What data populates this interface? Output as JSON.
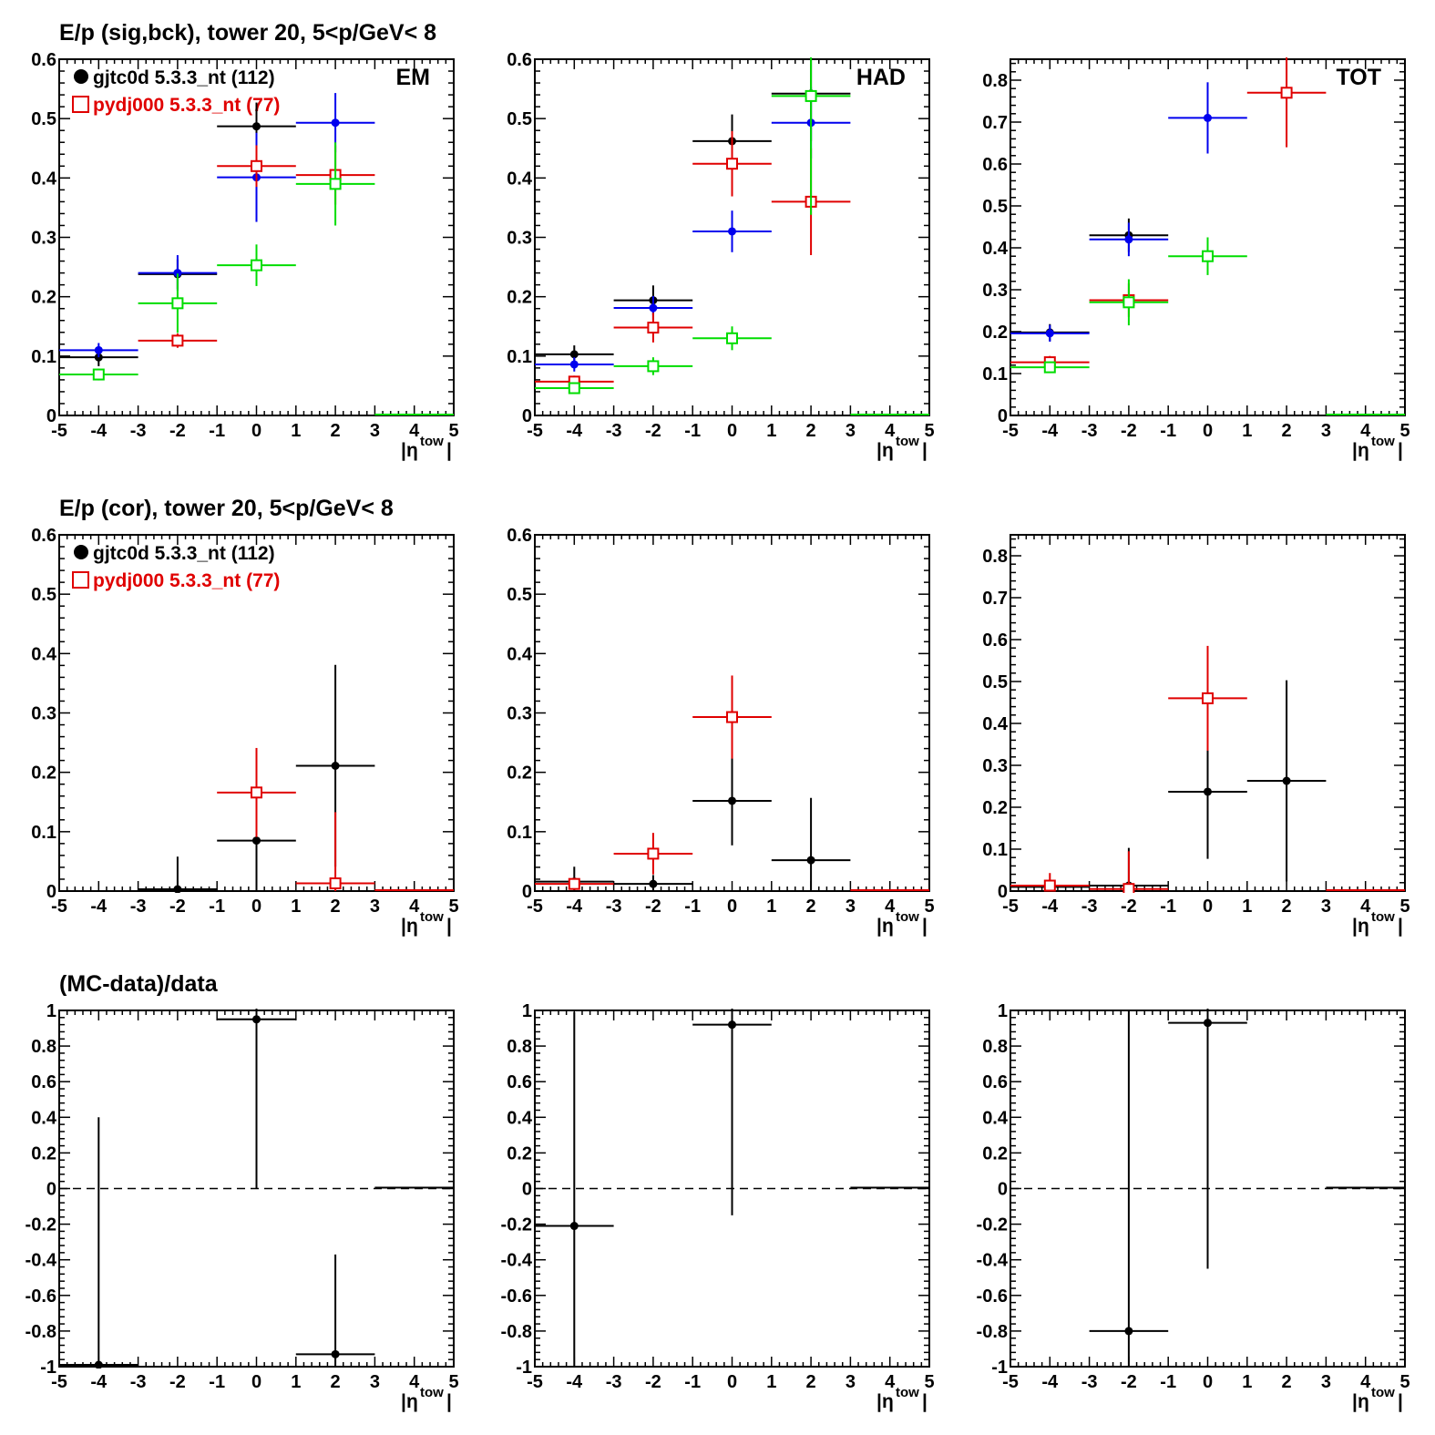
{
  "rows": [
    {
      "title": "E/p (sig,bck), tower 20,  5<p/GeV< 8",
      "legend": [
        {
          "label": "gjtc0d 5.3.3_nt (112)",
          "color": "#000000",
          "marker": "filled-circle"
        },
        {
          "label": "pydj000 5.3.3_nt (77)",
          "color": "#e00000",
          "marker": "open-square"
        }
      ]
    },
    {
      "title": "E/p (cor), tower 20,  5<p/GeV< 8",
      "legend": [
        {
          "label": "gjtc0d 5.3.3_nt (112)",
          "color": "#000000",
          "marker": "filled-circle"
        },
        {
          "label": "pydj000 5.3.3_nt (77)",
          "color": "#e00000",
          "marker": "open-square"
        }
      ]
    },
    {
      "title": "(MC-data)/data",
      "legend": []
    }
  ],
  "chart_data": [
    {
      "type": "scatter",
      "row": 0,
      "col": 0,
      "tag": "EM",
      "xlabel": "|η^tow|",
      "xlim": [
        -5,
        5
      ],
      "ylim": [
        0,
        0.6
      ],
      "xticks": [
        -5,
        -4,
        -3,
        -2,
        -1,
        0,
        1,
        2,
        3,
        4,
        5
      ],
      "yticks": [
        0,
        0.1,
        0.2,
        0.3,
        0.4,
        0.5,
        0.6
      ],
      "ytick_labels": [
        "0",
        "0.1",
        "0.2",
        "0.3",
        "0.4",
        "0.5",
        "0.6"
      ],
      "series": [
        {
          "color": "#000000",
          "marker": "dot",
          "points": [
            [
              -4,
              0.098,
              0.015
            ],
            [
              -2,
              0.238,
              0.025
            ],
            [
              0,
              0.487,
              0.04
            ]
          ],
          "zero_from": 3
        },
        {
          "color": "#0000ee",
          "marker": "dot",
          "points": [
            [
              -4,
              0.11,
              0.012
            ],
            [
              -2,
              0.24,
              0.03
            ],
            [
              0,
              0.401,
              0.075
            ],
            [
              2,
              0.493,
              0.05
            ]
          ]
        },
        {
          "color": "#e00000",
          "marker": "square",
          "points": [
            [
              -2,
              0.126,
              0.012
            ],
            [
              0,
              0.42,
              0.035
            ],
            [
              2,
              0.405,
              0.05
            ]
          ]
        },
        {
          "color": "#00dd00",
          "marker": "square",
          "points": [
            [
              -4,
              0.069,
              0.01
            ],
            [
              -2,
              0.189,
              0.05
            ],
            [
              0,
              0.253,
              0.035
            ],
            [
              2,
              0.39,
              0.07
            ]
          ],
          "zero_from": 3
        }
      ]
    },
    {
      "type": "scatter",
      "row": 0,
      "col": 1,
      "tag": "HAD",
      "xlabel": "|η^tow|",
      "xlim": [
        -5,
        5
      ],
      "ylim": [
        0,
        0.6
      ],
      "xticks": [
        -5,
        -4,
        -3,
        -2,
        -1,
        0,
        1,
        2,
        3,
        4,
        5
      ],
      "yticks": [
        0,
        0.1,
        0.2,
        0.3,
        0.4,
        0.5,
        0.6
      ],
      "ytick_labels": [
        "0",
        "0.1",
        "0.2",
        "0.3",
        "0.4",
        "0.5",
        "0.6"
      ],
      "series": [
        {
          "color": "#000000",
          "marker": "dot",
          "points": [
            [
              -4,
              0.103,
              0.015
            ],
            [
              -2,
              0.194,
              0.025
            ],
            [
              0,
              0.462,
              0.045
            ],
            [
              2,
              0.542,
              0.08
            ]
          ]
        },
        {
          "color": "#0000ee",
          "marker": "dot",
          "points": [
            [
              -4,
              0.086,
              0.012
            ],
            [
              -2,
              0.181,
              0.02
            ],
            [
              0,
              0.31,
              0.035
            ],
            [
              2,
              0.493,
              0.06
            ]
          ]
        },
        {
          "color": "#e00000",
          "marker": "square",
          "points": [
            [
              -4,
              0.057,
              0.01
            ],
            [
              -2,
              0.148,
              0.025
            ],
            [
              0,
              0.424,
              0.055
            ],
            [
              2,
              0.36,
              0.09
            ]
          ]
        },
        {
          "color": "#00dd00",
          "marker": "square",
          "points": [
            [
              -4,
              0.046,
              0.008
            ],
            [
              -2,
              0.083,
              0.015
            ],
            [
              0,
              0.13,
              0.02
            ],
            [
              2,
              0.538,
              0.2
            ]
          ],
          "zero_from": 3
        }
      ]
    },
    {
      "type": "scatter",
      "row": 0,
      "col": 2,
      "tag": "TOT",
      "xlabel": "|η^tow|",
      "xlim": [
        -5,
        5
      ],
      "ylim": [
        0,
        0.85
      ],
      "xticks": [
        -5,
        -4,
        -3,
        -2,
        -1,
        0,
        1,
        2,
        3,
        4,
        5
      ],
      "yticks": [
        0,
        0.1,
        0.2,
        0.3,
        0.4,
        0.5,
        0.6,
        0.7,
        0.8
      ],
      "ytick_labels": [
        "0",
        "0.1",
        "0.2",
        "0.3",
        "0.4",
        "0.5",
        "0.6",
        "0.7",
        "0.8"
      ],
      "series": [
        {
          "color": "#000000",
          "marker": "dot",
          "points": [
            [
              -4,
              0.198,
              0.02
            ],
            [
              -2,
              0.43,
              0.04
            ]
          ]
        },
        {
          "color": "#0000ee",
          "marker": "dot",
          "points": [
            [
              -4,
              0.196,
              0.02
            ],
            [
              -2,
              0.42,
              0.04
            ],
            [
              0,
              0.71,
              0.085
            ]
          ]
        },
        {
          "color": "#e00000",
          "marker": "square",
          "points": [
            [
              -4,
              0.127,
              0.015
            ],
            [
              -2,
              0.275,
              0.04
            ],
            [
              2,
              0.77,
              0.13
            ]
          ]
        },
        {
          "color": "#00dd00",
          "marker": "square",
          "points": [
            [
              -4,
              0.115,
              0.012
            ],
            [
              -2,
              0.27,
              0.055
            ],
            [
              0,
              0.38,
              0.045
            ]
          ],
          "zero_from": 3
        }
      ]
    },
    {
      "type": "scatter",
      "row": 1,
      "col": 0,
      "xlabel": "|η^tow|",
      "xlim": [
        -5,
        5
      ],
      "ylim": [
        0,
        0.6
      ],
      "xticks": [
        -5,
        -4,
        -3,
        -2,
        -1,
        0,
        1,
        2,
        3,
        4,
        5
      ],
      "yticks": [
        0,
        0.1,
        0.2,
        0.3,
        0.4,
        0.5,
        0.6
      ],
      "ytick_labels": [
        "0",
        "0.1",
        "0.2",
        "0.3",
        "0.4",
        "0.5",
        "0.6"
      ],
      "series": [
        {
          "color": "#000000",
          "marker": "dot",
          "points": [
            [
              -2,
              0.003,
              0.055
            ],
            [
              0,
              0.085,
              0.085
            ],
            [
              2,
              0.211,
              0.17
            ]
          ]
        },
        {
          "color": "#e00000",
          "marker": "square",
          "points": [
            [
              0,
              0.166,
              0.075
            ],
            [
              2,
              0.013,
              0.12
            ]
          ],
          "zero_from": 3
        }
      ]
    },
    {
      "type": "scatter",
      "row": 1,
      "col": 1,
      "xlabel": "|η^tow|",
      "xlim": [
        -5,
        5
      ],
      "ylim": [
        0,
        0.6
      ],
      "xticks": [
        -5,
        -4,
        -3,
        -2,
        -1,
        0,
        1,
        2,
        3,
        4,
        5
      ],
      "yticks": [
        0,
        0.1,
        0.2,
        0.3,
        0.4,
        0.5,
        0.6
      ],
      "ytick_labels": [
        "0",
        "0.1",
        "0.2",
        "0.3",
        "0.4",
        "0.5",
        "0.6"
      ],
      "series": [
        {
          "color": "#000000",
          "marker": "dot",
          "points": [
            [
              -4,
              0.016,
              0.025
            ],
            [
              -2,
              0.012,
              0.015
            ],
            [
              0,
              0.152,
              0.075
            ],
            [
              2,
              0.052,
              0.105
            ]
          ]
        },
        {
          "color": "#e00000",
          "marker": "square",
          "points": [
            [
              -4,
              0.012,
              0.01
            ],
            [
              -2,
              0.063,
              0.035
            ],
            [
              0,
              0.293,
              0.07
            ]
          ],
          "zero_from": 3
        }
      ]
    },
    {
      "type": "scatter",
      "row": 1,
      "col": 2,
      "xlabel": "|η^tow|",
      "xlim": [
        -5,
        5
      ],
      "ylim": [
        0,
        0.85
      ],
      "xticks": [
        -5,
        -4,
        -3,
        -2,
        -1,
        0,
        1,
        2,
        3,
        4,
        5
      ],
      "yticks": [
        0,
        0.1,
        0.2,
        0.3,
        0.4,
        0.5,
        0.6,
        0.7,
        0.8
      ],
      "ytick_labels": [
        "0",
        "0.1",
        "0.2",
        "0.3",
        "0.4",
        "0.5",
        "0.6",
        "0.7",
        "0.8"
      ],
      "series": [
        {
          "color": "#000000",
          "marker": "dot",
          "points": [
            [
              -4,
              0.01,
              0.015
            ],
            [
              -2,
              0.013,
              0.09
            ],
            [
              0,
              0.237,
              0.16
            ],
            [
              2,
              0.263,
              0.24
            ]
          ]
        },
        {
          "color": "#e00000",
          "marker": "square",
          "points": [
            [
              -4,
              0.013,
              0.03
            ],
            [
              -2,
              0.005,
              0.09
            ],
            [
              0,
              0.46,
              0.125
            ]
          ],
          "zero_from": 3
        }
      ]
    },
    {
      "type": "scatter",
      "row": 2,
      "col": 0,
      "xlabel": "|η^tow|",
      "xlim": [
        -5,
        5
      ],
      "ylim": [
        -1,
        1
      ],
      "zero_line": true,
      "xticks": [
        -5,
        -4,
        -3,
        -2,
        -1,
        0,
        1,
        2,
        3,
        4,
        5
      ],
      "yticks": [
        -1,
        -0.8,
        -0.6,
        -0.4,
        -0.2,
        0,
        0.2,
        0.4,
        0.6,
        0.8,
        1
      ],
      "ytick_labels": [
        "-1",
        "-0.8",
        "-0.6",
        "-0.4",
        "-0.2",
        "0",
        "0.2",
        "0.4",
        "0.6",
        "0.8",
        "1"
      ],
      "series": [
        {
          "color": "#000000",
          "marker": "dot",
          "points": [
            [
              -4,
              -0.99,
              1.39
            ],
            [
              0,
              0.95,
              0.95
            ],
            [
              2,
              -0.93,
              0.56
            ]
          ],
          "zero_from": 3
        }
      ]
    },
    {
      "type": "scatter",
      "row": 2,
      "col": 1,
      "xlabel": "|η^tow|",
      "xlim": [
        -5,
        5
      ],
      "ylim": [
        -1,
        1
      ],
      "zero_line": true,
      "xticks": [
        -5,
        -4,
        -3,
        -2,
        -1,
        0,
        1,
        2,
        3,
        4,
        5
      ],
      "yticks": [
        -1,
        -0.8,
        -0.6,
        -0.4,
        -0.2,
        0,
        0.2,
        0.4,
        0.6,
        0.8,
        1
      ],
      "ytick_labels": [
        "-1",
        "-0.8",
        "-0.6",
        "-0.4",
        "-0.2",
        "0",
        "0.2",
        "0.4",
        "0.6",
        "0.8",
        "1"
      ],
      "series": [
        {
          "color": "#000000",
          "marker": "dot",
          "points": [
            [
              -4,
              -0.21,
              1.2
            ],
            [
              0,
              0.92,
              1.07
            ]
          ],
          "zero_from": 3
        }
      ]
    },
    {
      "type": "scatter",
      "row": 2,
      "col": 2,
      "xlabel": "|η^tow|",
      "xlim": [
        -5,
        5
      ],
      "ylim": [
        -1,
        1
      ],
      "zero_line": true,
      "xticks": [
        -5,
        -4,
        -3,
        -2,
        -1,
        0,
        1,
        2,
        3,
        4,
        5
      ],
      "yticks": [
        -1,
        -0.8,
        -0.6,
        -0.4,
        -0.2,
        0,
        0.2,
        0.4,
        0.6,
        0.8,
        1
      ],
      "ytick_labels": [
        "-1",
        "-0.8",
        "-0.6",
        "-0.4",
        "-0.2",
        "0",
        "0.2",
        "0.4",
        "0.6",
        "0.8",
        "1"
      ],
      "series": [
        {
          "color": "#000000",
          "marker": "dot",
          "points": [
            [
              -2,
              -0.8,
              1.8
            ],
            [
              0,
              0.93,
              1.38
            ]
          ],
          "zero_from": 3
        }
      ]
    }
  ]
}
